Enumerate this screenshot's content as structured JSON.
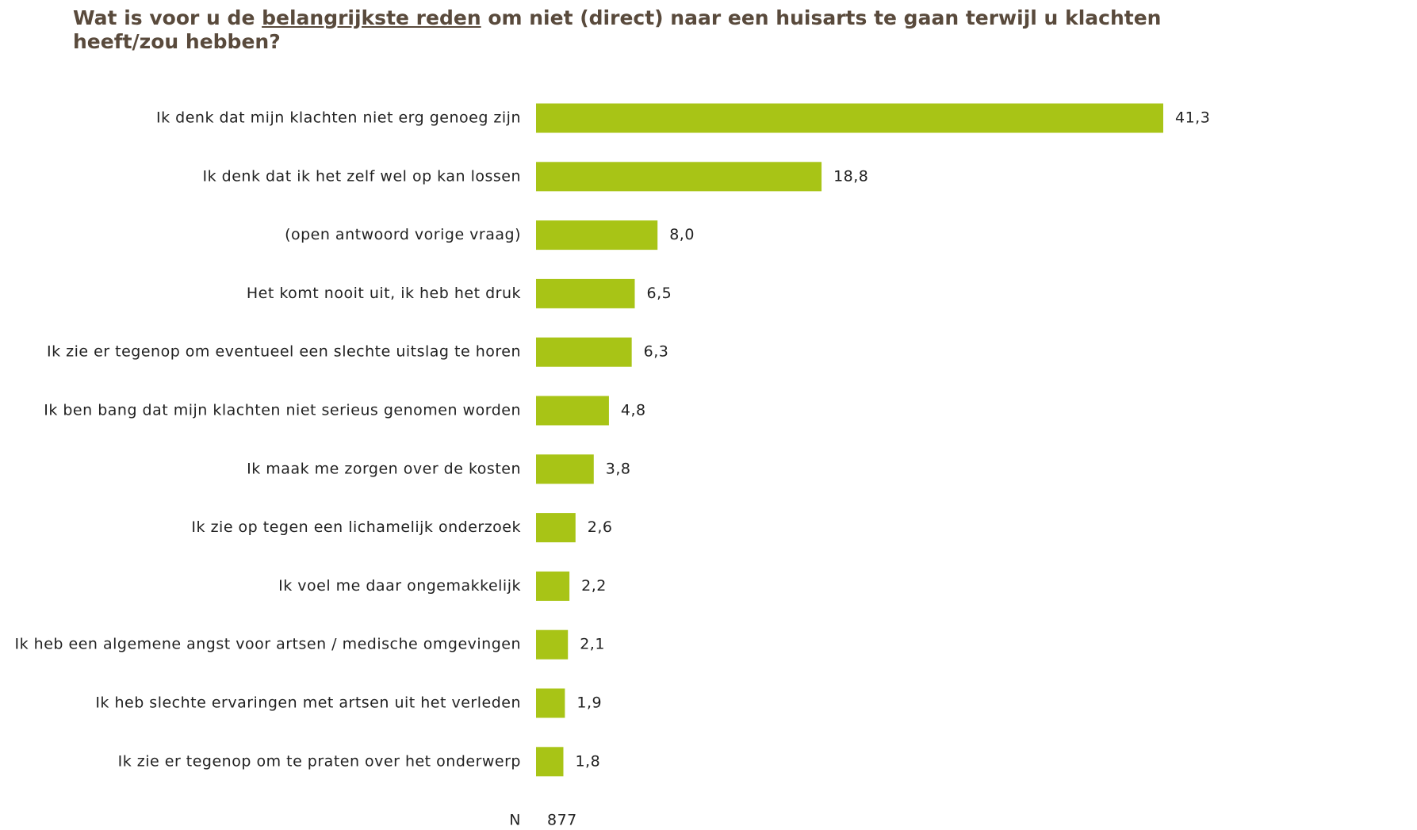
{
  "chart_data": {
    "type": "bar",
    "orientation": "horizontal",
    "title_parts": [
      "Wat is voor u de ",
      "belangrijkste reden",
      " om niet (direct) naar een huisarts te gaan terwijl u klachten heeft/zou hebben?"
    ],
    "categories": [
      "Ik denk dat mijn klachten niet erg genoeg zijn",
      "Ik denk dat ik het zelf wel op kan lossen",
      "(open antwoord vorige vraag)",
      "Het komt nooit uit, ik heb het druk",
      "Ik zie er tegenop om eventueel een slechte uitslag te horen",
      "Ik ben bang dat mijn klachten niet serieus genomen worden",
      "Ik maak me zorgen over de kosten",
      "Ik zie op tegen een lichamelijk onderzoek",
      "Ik voel me daar ongemakkelijk",
      "Ik heb een algemene angst voor artsen / medische omgevingen",
      "Ik heb slechte ervaringen met artsen uit het verleden",
      "Ik zie er tegenop om te praten over het onderwerp"
    ],
    "values": [
      41.3,
      18.8,
      8.0,
      6.5,
      6.3,
      4.8,
      3.8,
      2.6,
      2.2,
      2.1,
      1.9,
      1.8
    ],
    "value_labels": [
      "41,3",
      "18,8",
      "8,0",
      "6,5",
      "6,3",
      "4,8",
      "3,8",
      "2,6",
      "2,2",
      "2,1",
      "1,9",
      "1,8"
    ],
    "color": "#a8c416",
    "n_label": "N",
    "n_value": 877
  }
}
